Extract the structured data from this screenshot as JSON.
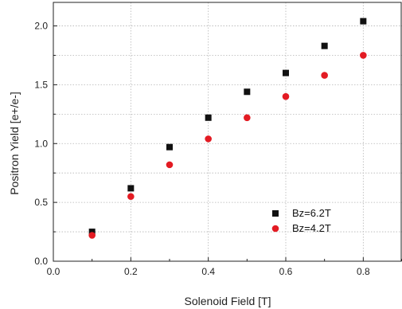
{
  "chart_data": {
    "type": "scatter",
    "title": "",
    "xlabel": "Solenoid Field [T]",
    "ylabel": "Positron Yield [e+/e-]",
    "xlim": [
      0.0,
      0.9
    ],
    "ylim": [
      0.0,
      2.2
    ],
    "xticks": [
      "0.0",
      "0.2",
      "0.4",
      "0.6",
      "0.8"
    ],
    "yticks": [
      "0.0",
      "0.5",
      "1.0",
      "1.5",
      "2.0"
    ],
    "grid": true,
    "legend_position": "lower-right",
    "series": [
      {
        "name": "Bz=6.2T",
        "marker": "square",
        "color": "#111111",
        "x": [
          0.1,
          0.2,
          0.3,
          0.4,
          0.5,
          0.6,
          0.7,
          0.8
        ],
        "y": [
          0.25,
          0.62,
          0.97,
          1.22,
          1.44,
          1.6,
          1.83,
          2.04
        ]
      },
      {
        "name": "Bz=4.2T",
        "marker": "circle",
        "color": "#e31b23",
        "x": [
          0.1,
          0.2,
          0.3,
          0.4,
          0.5,
          0.6,
          0.7,
          0.8
        ],
        "y": [
          0.22,
          0.55,
          0.82,
          1.04,
          1.22,
          1.4,
          1.58,
          1.75
        ]
      }
    ]
  }
}
